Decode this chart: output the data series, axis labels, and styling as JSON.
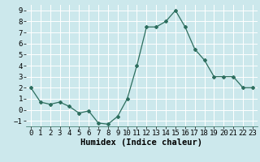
{
  "x": [
    0,
    1,
    2,
    3,
    4,
    5,
    6,
    7,
    8,
    9,
    10,
    11,
    12,
    13,
    14,
    15,
    16,
    17,
    18,
    19,
    20,
    21,
    22,
    23
  ],
  "y": [
    2.0,
    0.7,
    0.5,
    0.7,
    0.3,
    -0.3,
    -0.1,
    -1.2,
    -1.3,
    -0.6,
    1.0,
    4.0,
    7.5,
    7.5,
    8.0,
    9.0,
    7.5,
    5.5,
    4.5,
    3.0,
    3.0,
    3.0,
    2.0,
    2.0
  ],
  "xlabel": "Humidex (Indice chaleur)",
  "ylim": [
    -1.5,
    9.5
  ],
  "xlim": [
    -0.5,
    23.5
  ],
  "yticks": [
    -1,
    0,
    1,
    2,
    3,
    4,
    5,
    6,
    7,
    8,
    9
  ],
  "xticks": [
    0,
    1,
    2,
    3,
    4,
    5,
    6,
    7,
    8,
    9,
    10,
    11,
    12,
    13,
    14,
    15,
    16,
    17,
    18,
    19,
    20,
    21,
    22,
    23
  ],
  "line_color": "#2d6e5e",
  "marker": "D",
  "marker_size": 2.0,
  "bg_color": "#cce8ec",
  "grid_color": "#ffffff",
  "xlabel_fontsize": 7.5,
  "tick_fontsize": 6.5
}
